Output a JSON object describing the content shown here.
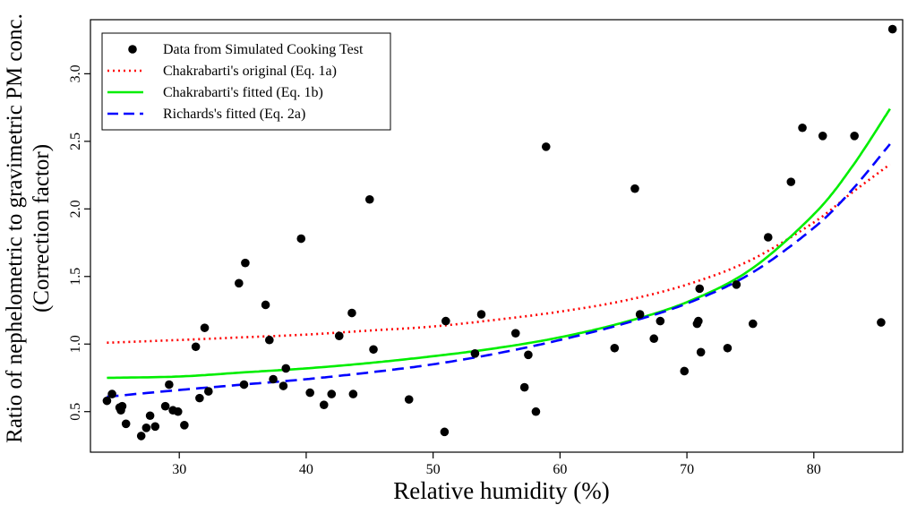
{
  "chart_data": {
    "type": "scatter",
    "title": "",
    "xlabel": "Relative humidity (%)",
    "ylabel_line1": "Ratio of nephelometric to gravimetric PM conc.",
    "ylabel_line2": "(Correction factor)",
    "xlim": [
      23,
      87
    ],
    "ylim": [
      0.2,
      3.4
    ],
    "x_ticks": [
      {
        "value": 30,
        "label": "30"
      },
      {
        "value": 40,
        "label": "40"
      },
      {
        "value": 50,
        "label": "50"
      },
      {
        "value": 60,
        "label": "60"
      },
      {
        "value": 70,
        "label": "70"
      },
      {
        "value": 80,
        "label": "80"
      }
    ],
    "y_ticks": [
      {
        "value": 0.5,
        "label": "0.5"
      },
      {
        "value": 1.0,
        "label": "1.0"
      },
      {
        "value": 1.5,
        "label": "1.5"
      },
      {
        "value": 2.0,
        "label": "2.0"
      },
      {
        "value": 2.5,
        "label": "2.5"
      },
      {
        "value": 3.0,
        "label": "3.0"
      }
    ],
    "grid": false,
    "legend_position": "top-left",
    "points": {
      "name": "Data from Simulated Cooking Test",
      "color": "#000000",
      "x": [
        24.3,
        24.7,
        25.3,
        25.4,
        25.5,
        25.8,
        27.0,
        27.4,
        27.7,
        28.1,
        28.9,
        29.2,
        29.5,
        29.9,
        30.4,
        31.3,
        31.6,
        32.0,
        32.3,
        34.7,
        35.1,
        35.2,
        36.8,
        37.1,
        37.4,
        38.2,
        38.4,
        39.6,
        40.3,
        41.4,
        42.0,
        42.6,
        43.6,
        43.7,
        45.0,
        45.3,
        48.1,
        50.9,
        51.0,
        53.3,
        53.8,
        56.5,
        57.2,
        57.5,
        58.1,
        58.9,
        64.3,
        65.9,
        66.3,
        67.4,
        67.9,
        69.8,
        70.8,
        70.9,
        71.0,
        71.1,
        73.2,
        73.9,
        75.2,
        76.4,
        78.2,
        79.1,
        80.7,
        83.2,
        85.3,
        86.2
      ],
      "y": [
        0.58,
        0.63,
        0.53,
        0.51,
        0.54,
        0.41,
        0.32,
        0.38,
        0.47,
        0.39,
        0.54,
        0.7,
        0.51,
        0.5,
        0.4,
        0.98,
        0.6,
        1.12,
        0.65,
        1.45,
        0.7,
        1.6,
        1.29,
        1.03,
        0.74,
        0.69,
        0.82,
        1.78,
        0.64,
        0.55,
        0.63,
        1.06,
        1.23,
        0.63,
        2.07,
        0.96,
        0.59,
        0.35,
        1.17,
        0.93,
        1.22,
        1.08,
        0.68,
        0.92,
        0.5,
        2.46,
        0.97,
        2.15,
        1.22,
        1.04,
        1.17,
        0.8,
        1.15,
        1.17,
        1.41,
        0.94,
        0.97,
        1.44,
        1.15,
        1.79,
        2.2,
        2.6,
        2.54,
        2.54,
        1.16,
        3.33
      ]
    },
    "series": [
      {
        "name": "Chakrabarti's original (Eq. 1a)",
        "color": "#ff0000",
        "dash": "dotted",
        "x": [
          24.3,
          30,
          35,
          40,
          45,
          50,
          55,
          60,
          65,
          70,
          75,
          80,
          83,
          86
        ],
        "y": [
          1.01,
          1.03,
          1.05,
          1.07,
          1.1,
          1.13,
          1.18,
          1.24,
          1.32,
          1.44,
          1.62,
          1.9,
          2.12,
          2.33
        ]
      },
      {
        "name": "Chakrabarti's fitted (Eq. 1b)",
        "color": "#00ee00",
        "dash": "solid",
        "x": [
          24.3,
          30,
          35,
          40,
          45,
          50,
          55,
          60,
          65,
          70,
          75,
          80,
          83,
          86
        ],
        "y": [
          0.75,
          0.76,
          0.79,
          0.82,
          0.86,
          0.91,
          0.97,
          1.05,
          1.16,
          1.31,
          1.55,
          1.96,
          2.31,
          2.74
        ]
      },
      {
        "name": "Richards's fitted (Eq. 2a)",
        "color": "#0000ff",
        "dash": "dashed",
        "x": [
          24.3,
          30,
          35,
          40,
          45,
          50,
          55,
          60,
          65,
          70,
          75,
          80,
          83,
          86
        ],
        "y": [
          0.61,
          0.66,
          0.7,
          0.74,
          0.79,
          0.85,
          0.93,
          1.03,
          1.15,
          1.3,
          1.52,
          1.86,
          2.14,
          2.48
        ]
      }
    ]
  }
}
